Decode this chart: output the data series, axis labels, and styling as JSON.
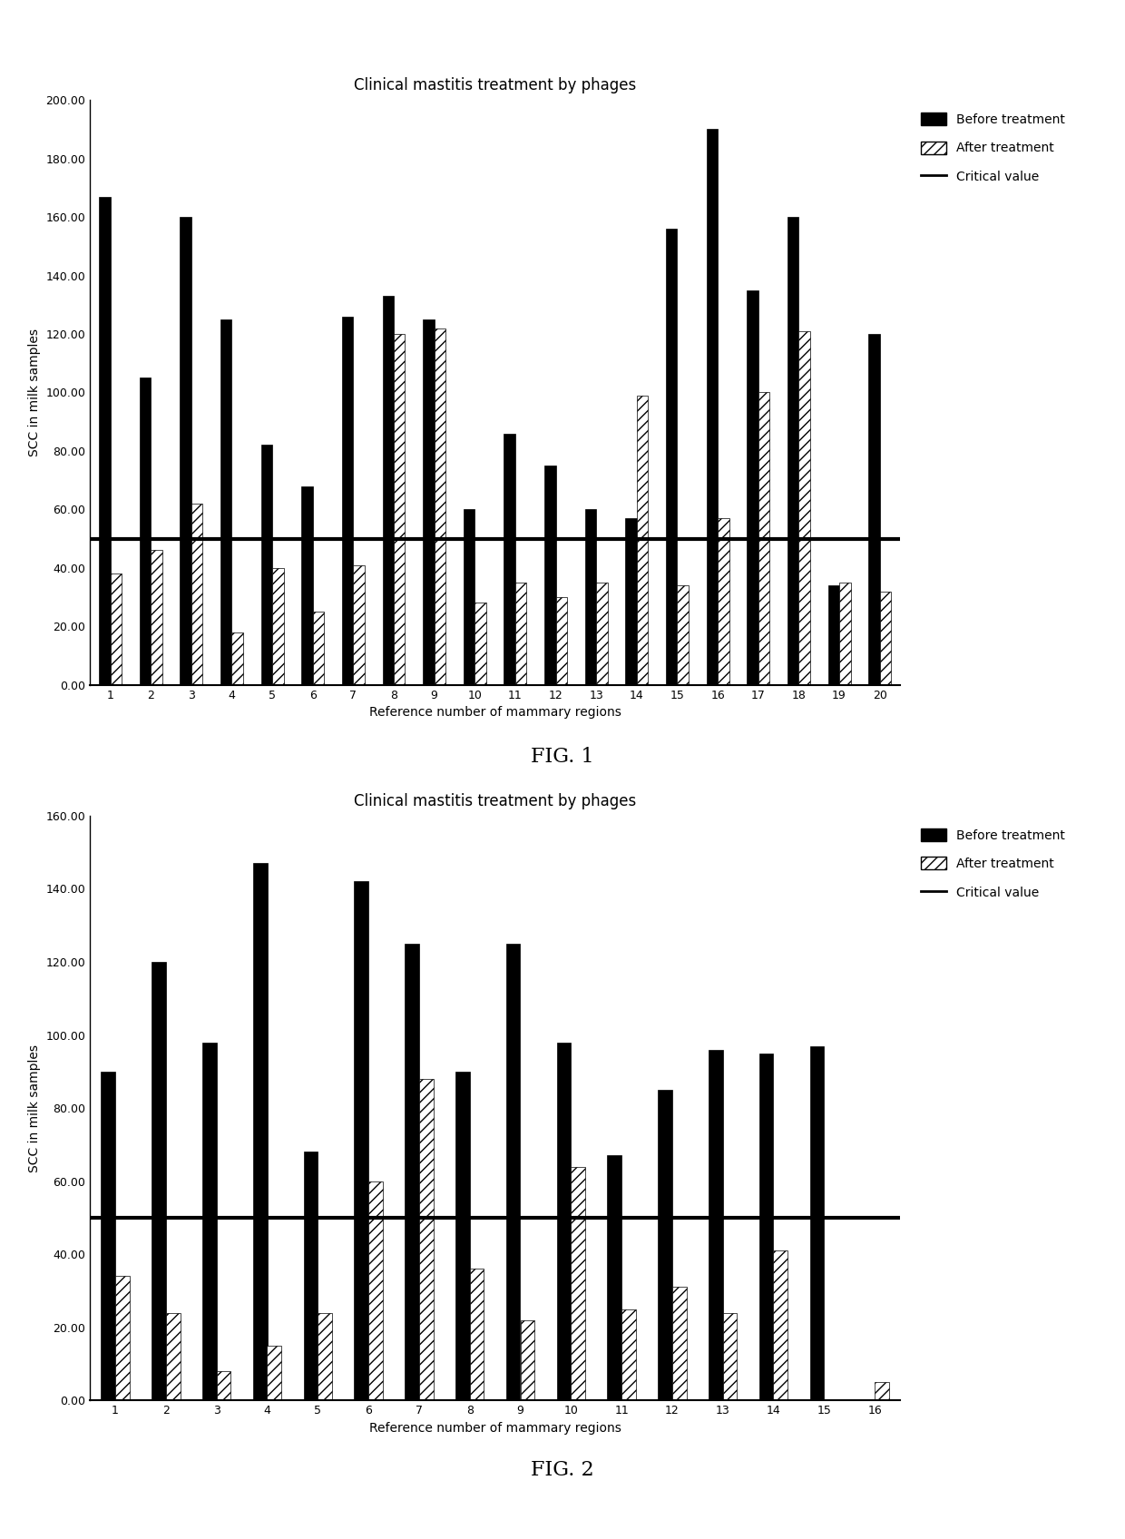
{
  "fig1": {
    "title": "Clinical mastitis treatment by phages",
    "xlabel": "Reference number of mammary regions",
    "ylabel": "SCC in milk samples",
    "ylim": [
      0,
      200
    ],
    "yticks": [
      0,
      20,
      40,
      60,
      80,
      100,
      120,
      140,
      160,
      180,
      200
    ],
    "ytick_labels": [
      "0.00",
      "20.00",
      "40.00",
      "60.00",
      "80.00",
      "100.00",
      "120.00",
      "140.00",
      "160.00",
      "180.00",
      "200.00"
    ],
    "critical_value": 50,
    "before": [
      167,
      105,
      160,
      125,
      82,
      68,
      126,
      133,
      125,
      60,
      86,
      75,
      60,
      57,
      156,
      190,
      135,
      160,
      34,
      120
    ],
    "after": [
      38,
      46,
      62,
      18,
      40,
      25,
      41,
      120,
      122,
      28,
      35,
      30,
      35,
      99,
      34,
      57,
      100,
      121,
      35,
      32
    ],
    "n": 20,
    "fig_label": "FIG. 1"
  },
  "fig2": {
    "title": "Clinical mastitis treatment by phages",
    "xlabel": "Reference number of mammary regions",
    "ylabel": "SCC in milk samples",
    "ylim": [
      0,
      160
    ],
    "yticks": [
      0,
      20,
      40,
      60,
      80,
      100,
      120,
      140,
      160
    ],
    "ytick_labels": [
      "0.00",
      "20.00",
      "40.00",
      "60.00",
      "80.00",
      "100.00",
      "120.00",
      "140.00",
      "160.00"
    ],
    "critical_value": 50,
    "before": [
      90,
      120,
      98,
      147,
      68,
      142,
      125,
      90,
      125,
      98,
      67,
      85,
      96,
      95,
      97,
      0
    ],
    "after": [
      34,
      24,
      8,
      15,
      24,
      60,
      88,
      36,
      22,
      64,
      25,
      31,
      24,
      41,
      0,
      5
    ],
    "n": 16,
    "fig_label": "FIG. 2"
  },
  "background_color": "#ffffff",
  "bar_before_color": "#000000",
  "bar_after_hatch": "///",
  "bar_after_edgecolor": "#000000",
  "critical_line_color": "#000000",
  "title_fontsize": 12,
  "label_fontsize": 10,
  "tick_fontsize": 9,
  "legend_fontsize": 10,
  "fig_label_fontsize": 16
}
